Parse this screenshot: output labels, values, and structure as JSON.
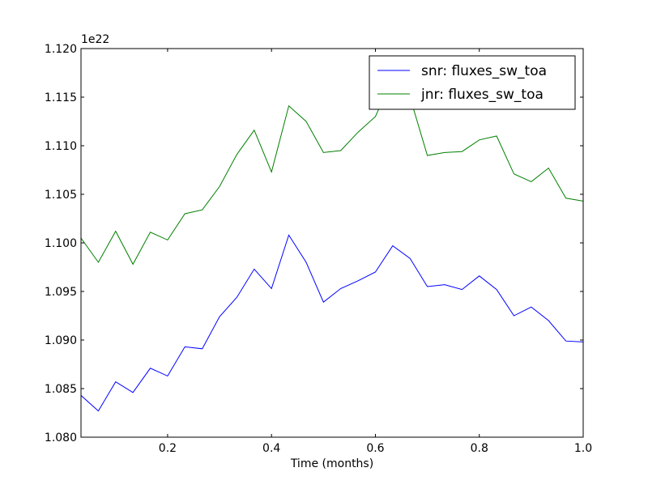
{
  "chart_data": {
    "type": "line",
    "title": "",
    "xlabel": "Time (months)",
    "ylabel": "",
    "offset_label": "1e22",
    "xlim": [
      0.0333,
      1.0
    ],
    "ylim": [
      1.08,
      1.12
    ],
    "x_ticks": [
      0.2,
      0.4,
      0.6,
      0.8,
      1.0
    ],
    "x_tick_labels": [
      "0.2",
      "0.4",
      "0.6",
      "0.8",
      "1.0"
    ],
    "y_ticks": [
      1.08,
      1.085,
      1.09,
      1.095,
      1.1,
      1.105,
      1.11,
      1.115,
      1.12
    ],
    "y_tick_labels": [
      "1.080",
      "1.085",
      "1.090",
      "1.095",
      "1.100",
      "1.105",
      "1.110",
      "1.115",
      "1.120"
    ],
    "grid": false,
    "legend_position": "top-right",
    "x": [
      0.0333,
      0.0667,
      0.1,
      0.1333,
      0.1667,
      0.2,
      0.2333,
      0.2667,
      0.3,
      0.3333,
      0.3667,
      0.4,
      0.4333,
      0.4667,
      0.5,
      0.5333,
      0.5667,
      0.6,
      0.6333,
      0.6667,
      0.7,
      0.7333,
      0.7667,
      0.8,
      0.8333,
      0.8667,
      0.9,
      0.9333,
      0.9667,
      1.0
    ],
    "series": [
      {
        "name": "snr: fluxes_sw_toa",
        "color": "#0000ff",
        "values": [
          1.0843,
          1.0827,
          1.0857,
          1.0846,
          1.0871,
          1.0863,
          1.0893,
          1.0891,
          1.0924,
          1.0944,
          1.0973,
          1.0953,
          1.1008,
          1.098,
          1.0939,
          1.0953,
          1.0961,
          1.097,
          1.0997,
          1.0984,
          1.0955,
          1.0957,
          1.0952,
          1.0966,
          1.0952,
          1.0925,
          1.0934,
          1.092,
          1.0899,
          1.0898
        ]
      },
      {
        "name": "jnr: fluxes_sw_toa",
        "color": "#008000",
        "values": [
          1.1005,
          1.098,
          1.1012,
          1.0978,
          1.1011,
          1.1003,
          1.103,
          1.1034,
          1.1058,
          1.1091,
          1.1116,
          1.1073,
          1.1141,
          1.1125,
          1.1093,
          1.1095,
          1.1114,
          1.113,
          1.117,
          1.115,
          1.109,
          1.1093,
          1.1094,
          1.1106,
          1.111,
          1.1071,
          1.1063,
          1.1077,
          1.1046,
          1.1043
        ]
      }
    ]
  }
}
